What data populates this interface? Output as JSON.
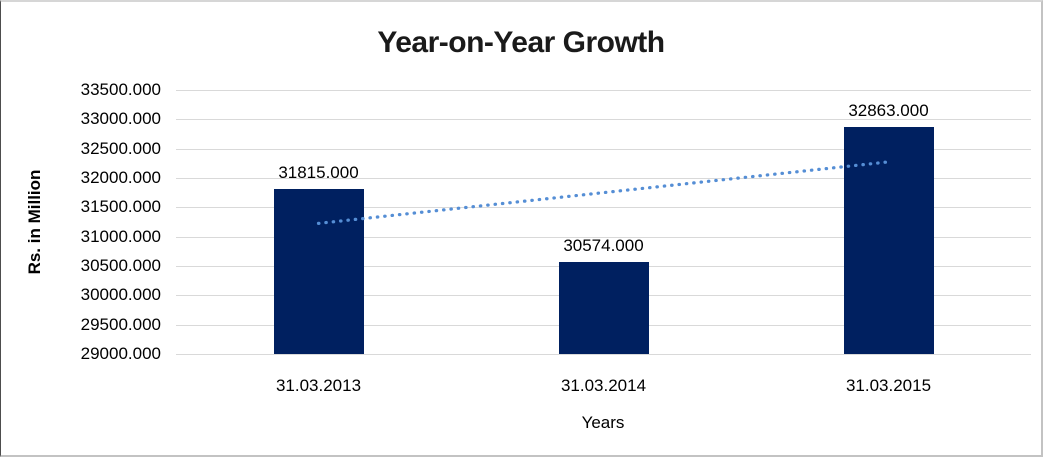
{
  "chart_data": {
    "type": "bar",
    "title": "Year-on-Year Growth",
    "xlabel": "Years",
    "ylabel": "Rs. in Million",
    "categories": [
      "31.03.2013",
      "31.03.2014",
      "31.03.2015"
    ],
    "series": [
      {
        "name": "Rs. in Million",
        "values": [
          31815,
          30574,
          32863
        ]
      }
    ],
    "data_labels": [
      "31815.000",
      "30574.000",
      "32863.000"
    ],
    "ylim": [
      29000,
      33500
    ],
    "ytick_step": 500,
    "ytick_labels": [
      "33500.000",
      "33000.000",
      "32500.000",
      "32000.000",
      "31500.000",
      "31000.000",
      "30500.000",
      "30000.000",
      "29500.000",
      "29000.000"
    ],
    "grid": "horizontal",
    "legend": "none",
    "colors": {
      "bar": "#002060",
      "trendline": "#558ED5",
      "gridline": "#d9d9d9",
      "text": "#000000",
      "title_text": "#1a1a1a"
    },
    "trendline": {
      "type": "linear",
      "style": "dotted",
      "color": "#558ED5",
      "start_value": 31226.7,
      "end_value": 32274.7
    }
  }
}
